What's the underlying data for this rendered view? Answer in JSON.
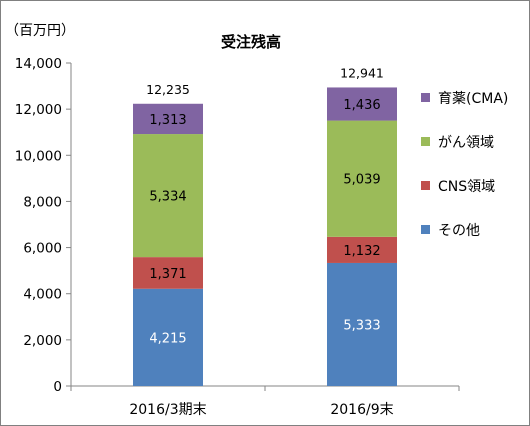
{
  "chart_data": {
    "type": "bar",
    "stacked": true,
    "title": "受注残高",
    "unit_label": "（百万円）",
    "categories": [
      "2016/3期末",
      "2016/9末"
    ],
    "series": [
      {
        "name": "その他",
        "color": "#4F81BD",
        "values": [
          4215,
          5333
        ]
      },
      {
        "name": "CNS領域",
        "color": "#C0504D",
        "values": [
          1371,
          1132
        ]
      },
      {
        "name": "がん領域",
        "color": "#9BBB59",
        "values": [
          5334,
          5039
        ]
      },
      {
        "name": "育薬(CMA)",
        "color": "#8064A2",
        "values": [
          1313,
          1436
        ]
      }
    ],
    "totals": [
      12235,
      12941
    ],
    "ylim": [
      0,
      14000
    ],
    "yticks": [
      0,
      2000,
      4000,
      6000,
      8000,
      10000,
      12000,
      14000
    ],
    "grid": false,
    "legend_position": "right"
  }
}
